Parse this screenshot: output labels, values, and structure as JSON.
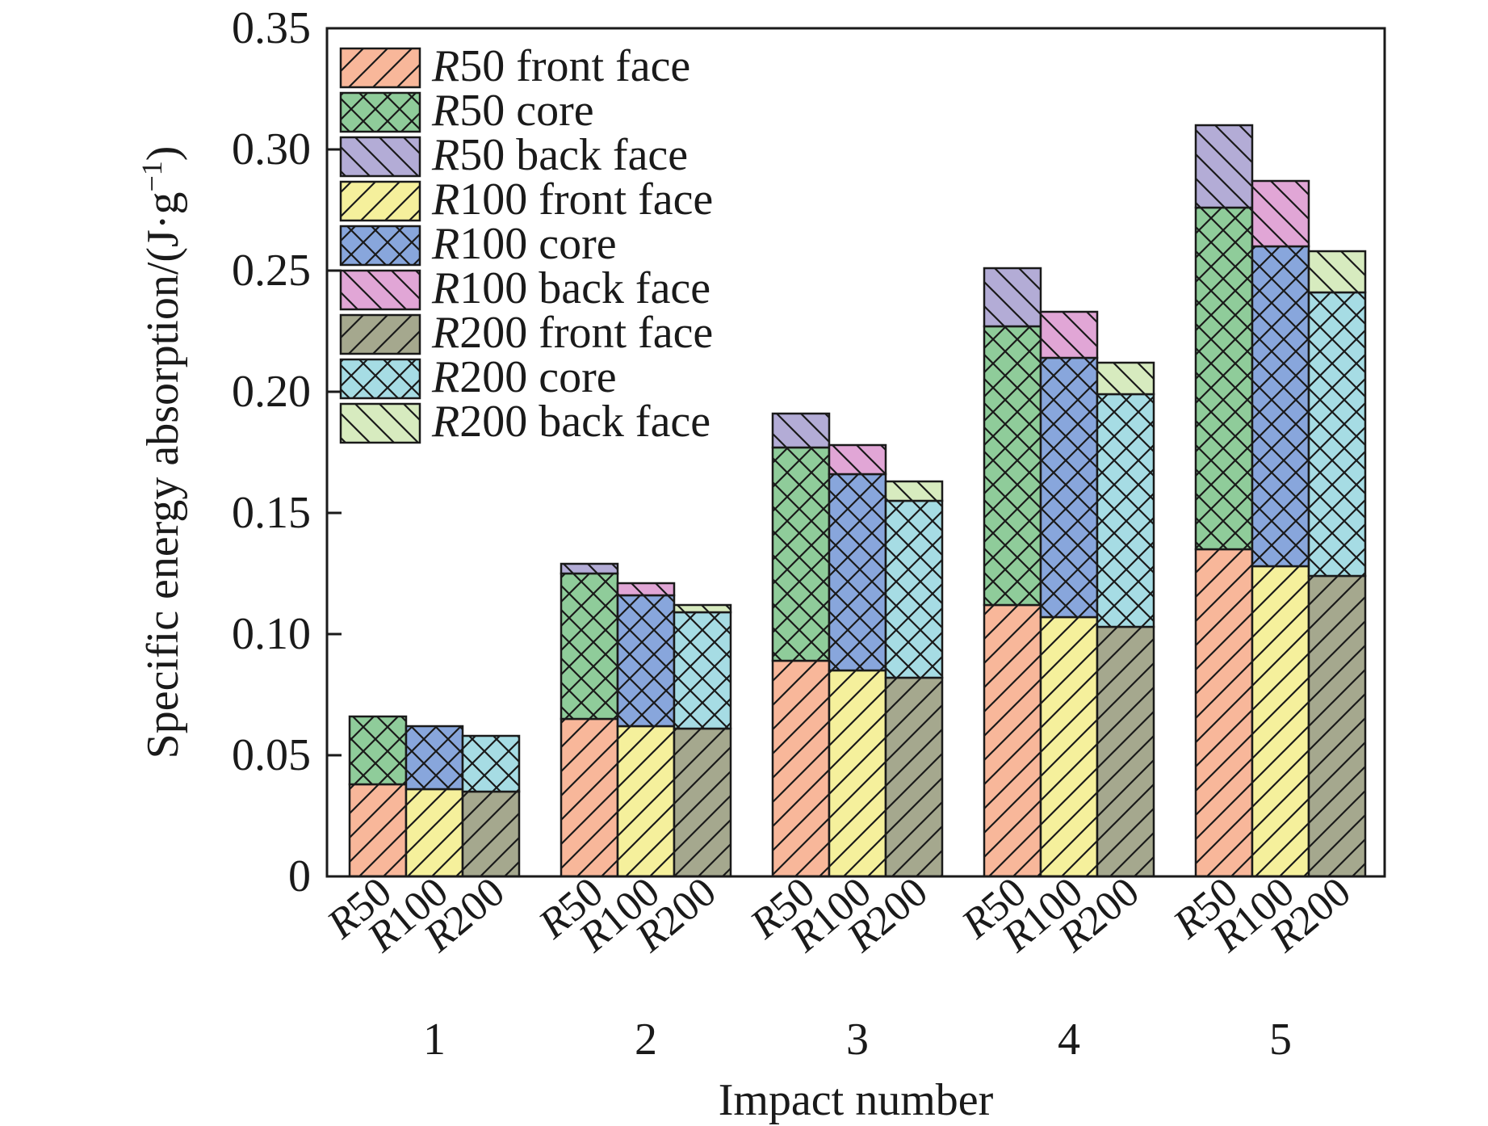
{
  "chart_data": {
    "type": "bar",
    "stacked": true,
    "xlabel": "Impact number",
    "ylabel": "Specific energy absorption/(J·g⁻¹)",
    "ylabel_parts": {
      "main": "Specific energy absorption/(J·g",
      "sup": "−1",
      "end": ")"
    },
    "ylim": [
      0,
      0.35
    ],
    "yticks": [
      "0",
      "0.05",
      "0.10",
      "0.15",
      "0.20",
      "0.25",
      "0.30",
      "0.35"
    ],
    "categories": [
      "1",
      "2",
      "3",
      "4",
      "5"
    ],
    "bar_labels": [
      "R50",
      "R100",
      "R200"
    ],
    "legend_position": "top-left",
    "grid": false,
    "layers": [
      "front face",
      "core",
      "back face"
    ],
    "groups": {
      "R50": {
        "front face": [
          0.038,
          0.065,
          0.089,
          0.112,
          0.135
        ],
        "core": [
          0.066,
          0.125,
          0.177,
          0.227,
          0.276
        ],
        "back face": [
          0.066,
          0.129,
          0.191,
          0.251,
          0.31
        ]
      },
      "R100": {
        "front face": [
          0.036,
          0.062,
          0.085,
          0.107,
          0.128
        ],
        "core": [
          0.062,
          0.116,
          0.166,
          0.214,
          0.26
        ],
        "back face": [
          0.062,
          0.121,
          0.178,
          0.233,
          0.287
        ]
      },
      "R200": {
        "front face": [
          0.035,
          0.061,
          0.082,
          0.103,
          0.124
        ],
        "core": [
          0.058,
          0.109,
          0.155,
          0.199,
          0.241
        ],
        "back face": [
          0.058,
          0.112,
          0.163,
          0.212,
          0.258
        ]
      }
    },
    "legend": [
      {
        "prefix": "R",
        "rest": "50 front face",
        "group": "R50",
        "layer": "front face",
        "color": "#f8b79a",
        "hatch": "fwd"
      },
      {
        "prefix": "R",
        "rest": "50 core",
        "group": "R50",
        "layer": "core",
        "color": "#8fcc9a",
        "hatch": "cross"
      },
      {
        "prefix": "R",
        "rest": "50 back face",
        "group": "R50",
        "layer": "back face",
        "color": "#b3acd6",
        "hatch": "back"
      },
      {
        "prefix": "R",
        "rest": "100 front face",
        "group": "R100",
        "layer": "front face",
        "color": "#f5f09c",
        "hatch": "fwd"
      },
      {
        "prefix": "R",
        "rest": "100 core",
        "group": "R100",
        "layer": "core",
        "color": "#88a6dc",
        "hatch": "cross"
      },
      {
        "prefix": "R",
        "rest": "100 back face",
        "group": "R100",
        "layer": "back face",
        "color": "#e1a6d6",
        "hatch": "back"
      },
      {
        "prefix": "R",
        "rest": "200 front face",
        "group": "R200",
        "layer": "front face",
        "color": "#a5a88e",
        "hatch": "fwd"
      },
      {
        "prefix": "R",
        "rest": "200 core",
        "group": "R200",
        "layer": "core",
        "color": "#a6dce4",
        "hatch": "cross"
      },
      {
        "prefix": "R",
        "rest": "200 back face",
        "group": "R200",
        "layer": "back face",
        "color": "#d7ebbf",
        "hatch": "back"
      }
    ]
  }
}
